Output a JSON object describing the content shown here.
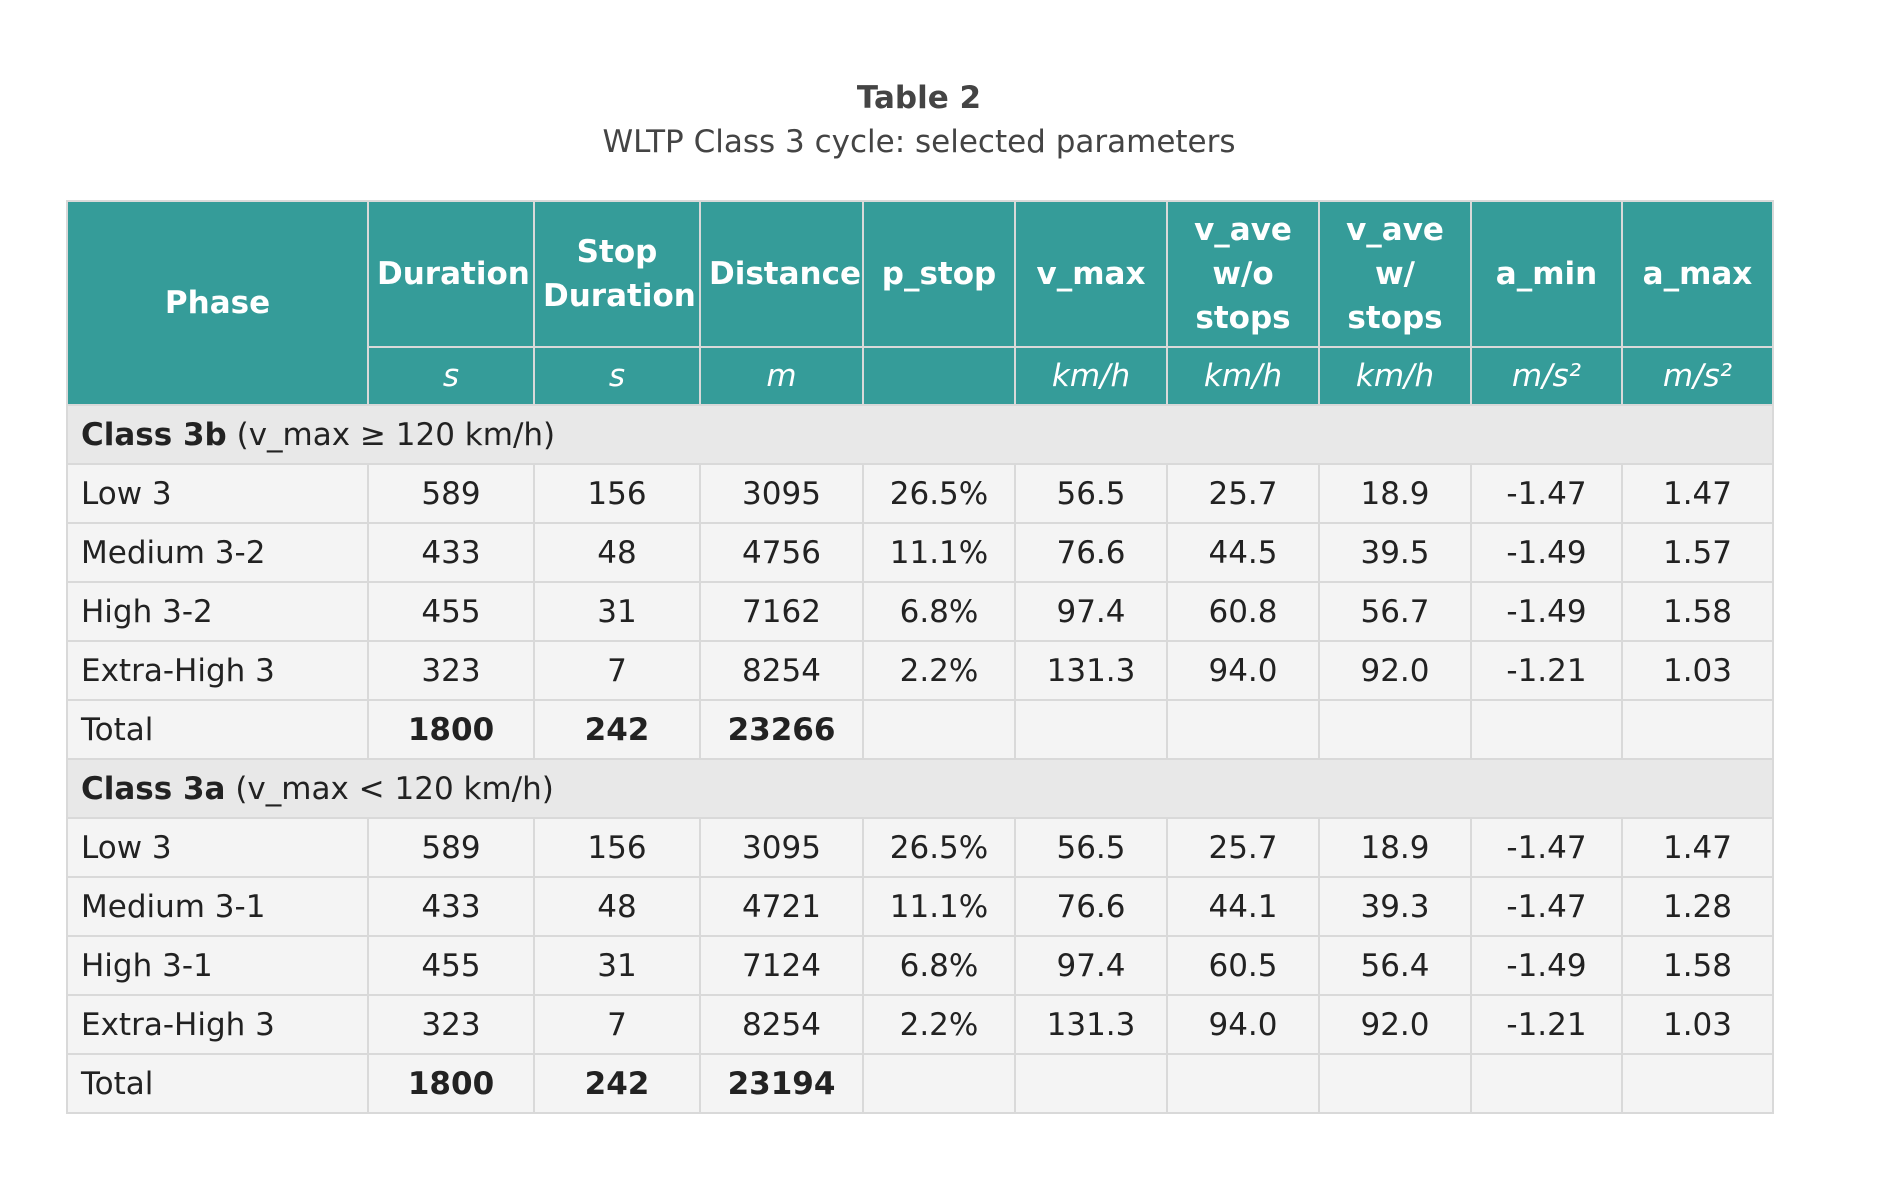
{
  "caption": {
    "title": "Table 2",
    "subtitle": "WLTP Class 3 cycle: selected parameters"
  },
  "header": {
    "columns": [
      {
        "label": "Phase",
        "unit": ""
      },
      {
        "label": "Duration",
        "unit": "s"
      },
      {
        "label": "Stop Duration",
        "unit": "s"
      },
      {
        "label": "Distance",
        "unit": "m"
      },
      {
        "label": "p_stop",
        "unit": ""
      },
      {
        "label": "v_max",
        "unit": "km/h"
      },
      {
        "label": "v_ave w/o stops",
        "unit": "km/h"
      },
      {
        "label": "v_ave w/ stops",
        "unit": "km/h"
      },
      {
        "label": "a_min",
        "unit": "m/s²"
      },
      {
        "label": "a_max",
        "unit": "m/s²"
      }
    ]
  },
  "groups": [
    {
      "name": "Class 3b",
      "condition": " (v_max ≥ 120 km/h)",
      "rows": [
        [
          "Low 3",
          "589",
          "156",
          "3095",
          "26.5%",
          "56.5",
          "25.7",
          "18.9",
          "-1.47",
          "1.47"
        ],
        [
          "Medium 3-2",
          "433",
          "48",
          "4756",
          "11.1%",
          "76.6",
          "44.5",
          "39.5",
          "-1.49",
          "1.57"
        ],
        [
          "High 3-2",
          "455",
          "31",
          "7162",
          "6.8%",
          "97.4",
          "60.8",
          "56.7",
          "-1.49",
          "1.58"
        ],
        [
          "Extra-High 3",
          "323",
          "7",
          "8254",
          "2.2%",
          "131.3",
          "94.0",
          "92.0",
          "-1.21",
          "1.03"
        ]
      ],
      "total": [
        "Total",
        "1800",
        "242",
        "23266",
        "",
        "",
        "",
        "",
        "",
        ""
      ]
    },
    {
      "name": "Class 3a",
      "condition": " (v_max < 120 km/h)",
      "rows": [
        [
          "Low 3",
          "589",
          "156",
          "3095",
          "26.5%",
          "56.5",
          "25.7",
          "18.9",
          "-1.47",
          "1.47"
        ],
        [
          "Medium 3-1",
          "433",
          "48",
          "4721",
          "11.1%",
          "76.6",
          "44.1",
          "39.3",
          "-1.47",
          "1.28"
        ],
        [
          "High 3-1",
          "455",
          "31",
          "7124",
          "6.8%",
          "97.4",
          "60.5",
          "56.4",
          "-1.49",
          "1.58"
        ],
        [
          "Extra-High 3",
          "323",
          "7",
          "8254",
          "2.2%",
          "131.3",
          "94.0",
          "92.0",
          "-1.21",
          "1.03"
        ]
      ],
      "total": [
        "Total",
        "1800",
        "242",
        "23194",
        "",
        "",
        "",
        "",
        "",
        ""
      ]
    }
  ],
  "colors": {
    "header_bg": "#359c99",
    "header_text": "#ffffff",
    "row_bg": "#f4f4f4",
    "group_bg": "#e8e8e8",
    "border": "#d9d9d9"
  }
}
